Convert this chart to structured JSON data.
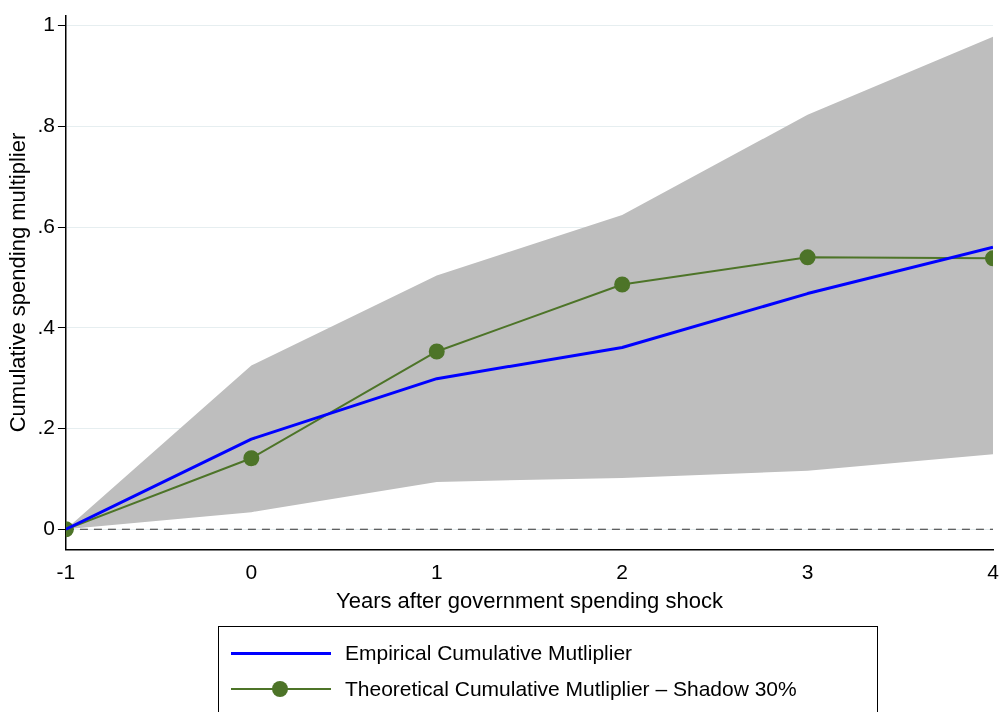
{
  "chart_data": {
    "type": "line",
    "xlabel": "Years after government spending shock",
    "ylabel": "Cumulative spending multiplier",
    "x": [
      -1,
      0,
      1,
      2,
      3,
      4
    ],
    "series": [
      {
        "name": "Empirical Cumulative Mutliplier",
        "color": "#0000ff",
        "marker": "none",
        "values": [
          0,
          0.179,
          0.299,
          0.361,
          0.468,
          0.56
        ],
        "lower": [
          0,
          0.034,
          0.094,
          0.102,
          0.116,
          0.149
        ],
        "upper": [
          0,
          0.325,
          0.504,
          0.624,
          0.823,
          0.978
        ]
      },
      {
        "name": "Theoretical Cumulative Mutliplier – Shadow 30%",
        "color": "#4d7428",
        "marker": "circle",
        "values": [
          0,
          0.141,
          0.353,
          0.486,
          0.54,
          0.538
        ]
      }
    ],
    "xlim": [
      -1,
      4
    ],
    "xticks": [
      -1,
      0,
      1,
      2,
      3,
      4
    ],
    "ylim": [
      -0.04,
      1.02
    ],
    "yticks": [
      0,
      {
        "value": 0.2,
        "label": ".2"
      },
      {
        "value": 0.4,
        "label": ".4"
      },
      {
        "value": 0.6,
        "label": ".6"
      },
      {
        "value": 0.8,
        "label": ".8"
      },
      1
    ],
    "grid": "y",
    "legend": "bottom",
    "ref_lines": [
      {
        "axis": "y",
        "value": 0,
        "color": "#333333",
        "line_style": "dashed"
      }
    ]
  }
}
